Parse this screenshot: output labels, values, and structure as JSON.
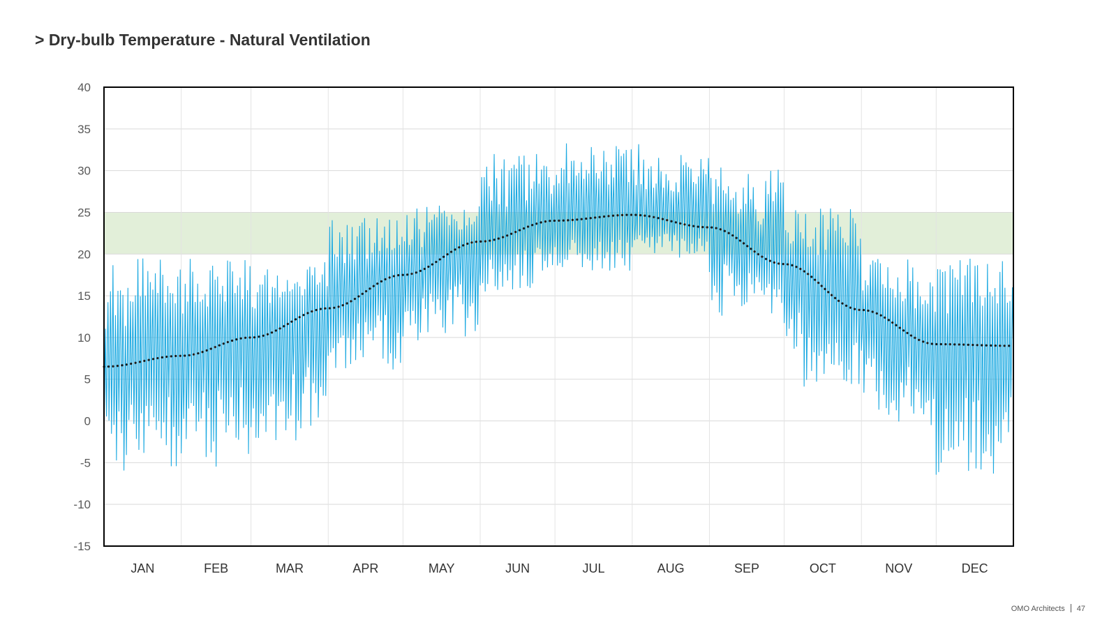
{
  "page": {
    "title": "> Dry-bulb Temperature - Natural Ventilation",
    "footer_org": "OMO Architects",
    "footer_page": "47"
  },
  "chart_data": {
    "type": "line",
    "title": "> Dry-bulb Temperature - Natural Ventilation",
    "xlabel": "",
    "ylabel": "",
    "ylim": [
      -15,
      40
    ],
    "yticks": [
      40,
      35,
      30,
      25,
      20,
      15,
      10,
      5,
      0,
      -5,
      -10,
      -15
    ],
    "grid": true,
    "legend": "none",
    "comfort_band": {
      "low": 20,
      "high": 25,
      "color": "#e2efd9"
    },
    "x_unit": "day of year",
    "xlim": [
      0,
      365
    ],
    "months": [
      {
        "label": "JAN",
        "start_day": 0,
        "days": 31
      },
      {
        "label": "FEB",
        "start_day": 31,
        "days": 28
      },
      {
        "label": "MAR",
        "start_day": 59,
        "days": 31
      },
      {
        "label": "APR",
        "start_day": 90,
        "days": 30
      },
      {
        "label": "MAY",
        "start_day": 120,
        "days": 31
      },
      {
        "label": "JUN",
        "start_day": 151,
        "days": 30
      },
      {
        "label": "JUL",
        "start_day": 181,
        "days": 31
      },
      {
        "label": "AUG",
        "start_day": 212,
        "days": 31
      },
      {
        "label": "SEP",
        "start_day": 243,
        "days": 30
      },
      {
        "label": "OCT",
        "start_day": 273,
        "days": 31
      },
      {
        "label": "NOV",
        "start_day": 304,
        "days": 30
      },
      {
        "label": "DEC",
        "start_day": 334,
        "days": 31
      }
    ],
    "series": [
      {
        "kind": "hourly",
        "color": "#1ba9e1",
        "monthly_envelope": [
          {
            "month": "JAN",
            "min": -6,
            "max": 19.5,
            "mean": 7.2
          },
          {
            "month": "FEB",
            "min": -5.5,
            "max": 19.5,
            "mean": 8.5
          },
          {
            "month": "MAR",
            "min": -3,
            "max": 19.5,
            "mean": 11.0
          },
          {
            "month": "APR",
            "min": 6,
            "max": 24.5,
            "mean": 14.5
          },
          {
            "month": "MAY",
            "min": 9.5,
            "max": 26,
            "mean": 18.5
          },
          {
            "month": "JUN",
            "min": 15.5,
            "max": 32,
            "mean": 22.0
          },
          {
            "month": "JUL",
            "min": 18,
            "max": 34,
            "mean": 24.2
          },
          {
            "month": "AUG",
            "min": 19.5,
            "max": 33.5,
            "mean": 24.5
          },
          {
            "month": "SEP",
            "min": 12.5,
            "max": 30.5,
            "mean": 22.0
          },
          {
            "month": "OCT",
            "min": 4,
            "max": 25.5,
            "mean": 17.0
          },
          {
            "month": "NOV",
            "min": -0.5,
            "max": 19.5,
            "mean": 11.5
          },
          {
            "month": "DEC",
            "min": -7,
            "max": 19.5,
            "mean": 9.0
          }
        ]
      },
      {
        "kind": "trend",
        "style": "dotted",
        "color": "#1a1a1a",
        "x": [
          0,
          31,
          59,
          90,
          120,
          151,
          181,
          212,
          243,
          273,
          304,
          334,
          365
        ],
        "y": [
          6.5,
          7.8,
          10.0,
          13.5,
          17.5,
          21.5,
          24.0,
          24.7,
          23.2,
          18.8,
          13.3,
          9.2,
          9.0
        ]
      }
    ]
  }
}
